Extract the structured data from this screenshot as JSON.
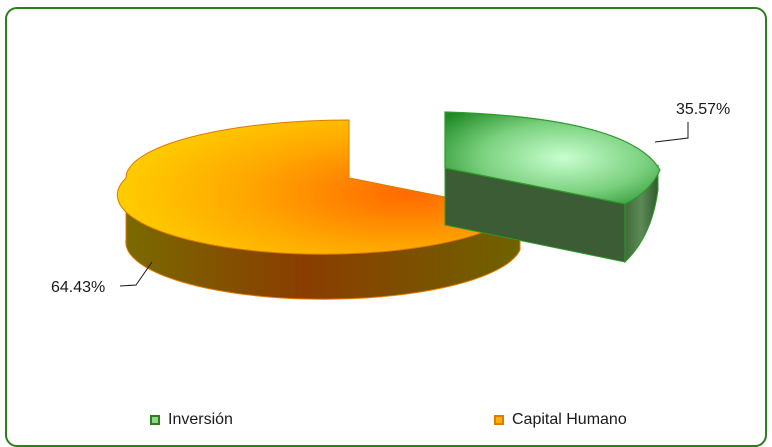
{
  "chart_data": {
    "type": "pie",
    "title": "",
    "slices": [
      {
        "name": "Inversión",
        "value": 35.57,
        "label": "35.57%",
        "color": "#2e9a2a"
      },
      {
        "name": "Capital Humano",
        "value": 64.43,
        "label": "64.43%",
        "color": "#ff9900"
      }
    ],
    "legend_position": "bottom",
    "style": "3d-exploded"
  }
}
